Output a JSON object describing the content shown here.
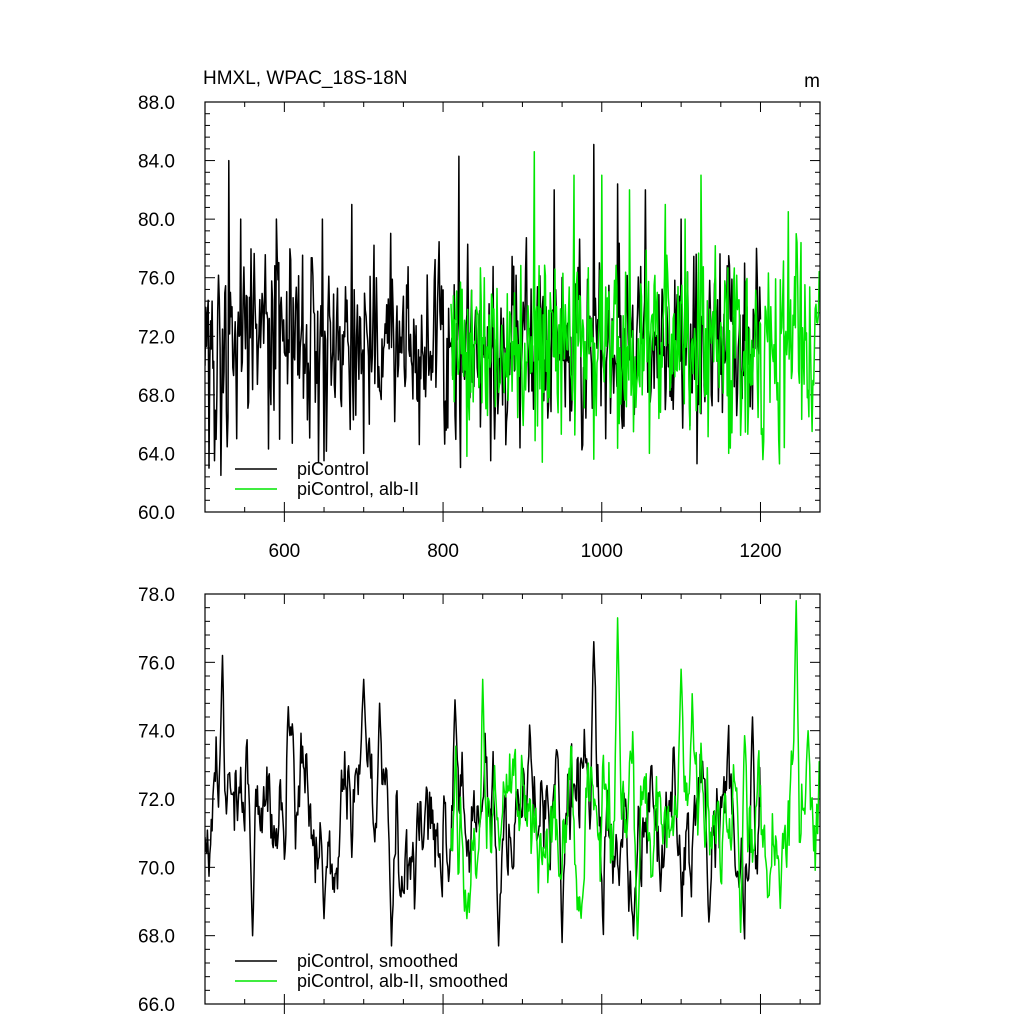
{
  "colors": {
    "control": "#000000",
    "alb": "#00e600"
  },
  "chart_data": [
    {
      "type": "line",
      "title": "HMXL, WPAC_18S-18N",
      "units": "m",
      "xlabel": "",
      "ylabel": "",
      "xlim": [
        500,
        1275
      ],
      "ylim": [
        60,
        88
      ],
      "xticks": [
        600,
        800,
        1000,
        1200
      ],
      "xtick_labels": [
        "600",
        "800",
        "1000",
        "1200"
      ],
      "yticks": [
        60,
        64,
        68,
        72,
        76,
        80,
        84,
        88
      ],
      "ytick_labels": [
        "60.0",
        "64.0",
        "68.0",
        "72.0",
        "76.0",
        "80.0",
        "84.0",
        "88.0"
      ],
      "legend_position": "bottom-left",
      "series": [
        {
          "name": "piControl",
          "color": "#000000",
          "x_start": 500,
          "x_end": 1200,
          "mean": 71.5,
          "amplitude": 4.2,
          "peaks": [
            [
              505,
              78
            ],
            [
              512,
              81
            ],
            [
              520,
              86.2
            ],
            [
              530,
              84
            ],
            [
              545,
              80
            ],
            [
              590,
              80
            ],
            [
              648,
              80
            ],
            [
              685,
              81
            ],
            [
              820,
              84.3
            ],
            [
              940,
              82
            ],
            [
              990,
              85.1
            ],
            [
              1020,
              82.4
            ],
            [
              1055,
              82
            ],
            [
              1100,
              80
            ],
            [
              1195,
              78
            ]
          ],
          "troughs": [
            [
              505,
              63
            ],
            [
              512,
              63.5
            ],
            [
              520,
              62.5
            ],
            [
              540,
              65
            ],
            [
              610,
              64.7
            ],
            [
              650,
              63.5
            ],
            [
              700,
              64
            ],
            [
              860,
              63.5
            ],
            [
              1005,
              65
            ],
            [
              1120,
              63.3
            ]
          ]
        },
        {
          "name": "piControl, alb-II",
          "color": "#00e600",
          "x_start": 810,
          "x_end": 1275,
          "mean": 71.5,
          "amplitude": 4.2,
          "peaks": [
            [
              915,
              84.6
            ],
            [
              965,
              83
            ],
            [
              1000,
              83
            ],
            [
              1035,
              82
            ],
            [
              1080,
              81
            ],
            [
              1105,
              80
            ],
            [
              1125,
              83
            ],
            [
              1235,
              80.5
            ],
            [
              1245,
              79
            ]
          ],
          "troughs": [
            [
              830,
              63.8
            ],
            [
              925,
              63.4
            ],
            [
              990,
              63.6
            ],
            [
              1060,
              64
            ],
            [
              1160,
              64
            ],
            [
              1230,
              64.4
            ],
            [
              1265,
              65.5
            ]
          ]
        }
      ]
    },
    {
      "type": "line",
      "title": "",
      "xlabel": "",
      "ylabel": "",
      "xlim": [
        500,
        1275
      ],
      "ylim": [
        66,
        78
      ],
      "xticks": [
        600,
        800,
        1000,
        1200
      ],
      "xtick_labels": [
        "",
        "",
        "",
        ""
      ],
      "yticks": [
        66,
        68,
        70,
        72,
        74,
        76,
        78
      ],
      "ytick_labels": [
        "66.0",
        "68.0",
        "70.0",
        "72.0",
        "74.0",
        "76.0",
        "78.0"
      ],
      "legend_position": "bottom-left",
      "series": [
        {
          "name": "piControl, smoothed",
          "color": "#000000",
          "x_start": 500,
          "x_end": 1200,
          "mean": 71.5,
          "amplitude": 1.5,
          "peaks": [
            [
              522,
              76.2
            ],
            [
              605,
              74.7
            ],
            [
              700,
              75.5
            ],
            [
              720,
              74.8
            ],
            [
              815,
              74.9
            ],
            [
              990,
              76.6
            ],
            [
              1190,
              74.4
            ]
          ],
          "troughs": [
            [
              560,
              68
            ],
            [
              650,
              68.5
            ],
            [
              735,
              67.7
            ],
            [
              870,
              67.7
            ],
            [
              950,
              67.8
            ],
            [
              1040,
              68
            ],
            [
              1135,
              68.4
            ]
          ]
        },
        {
          "name": "piControl, alb-II, smoothed",
          "color": "#00e600",
          "x_start": 810,
          "x_end": 1275,
          "mean": 71.5,
          "amplitude": 1.5,
          "peaks": [
            [
              850,
              75.5
            ],
            [
              1020,
              77.3
            ],
            [
              1100,
              75.8
            ],
            [
              1180,
              74.1
            ],
            [
              1245,
              77.8
            ],
            [
              1260,
              74
            ]
          ],
          "troughs": [
            [
              830,
              68.5
            ],
            [
              1045,
              67.9
            ],
            [
              1175,
              68.1
            ],
            [
              1225,
              68.8
            ]
          ]
        }
      ]
    }
  ]
}
